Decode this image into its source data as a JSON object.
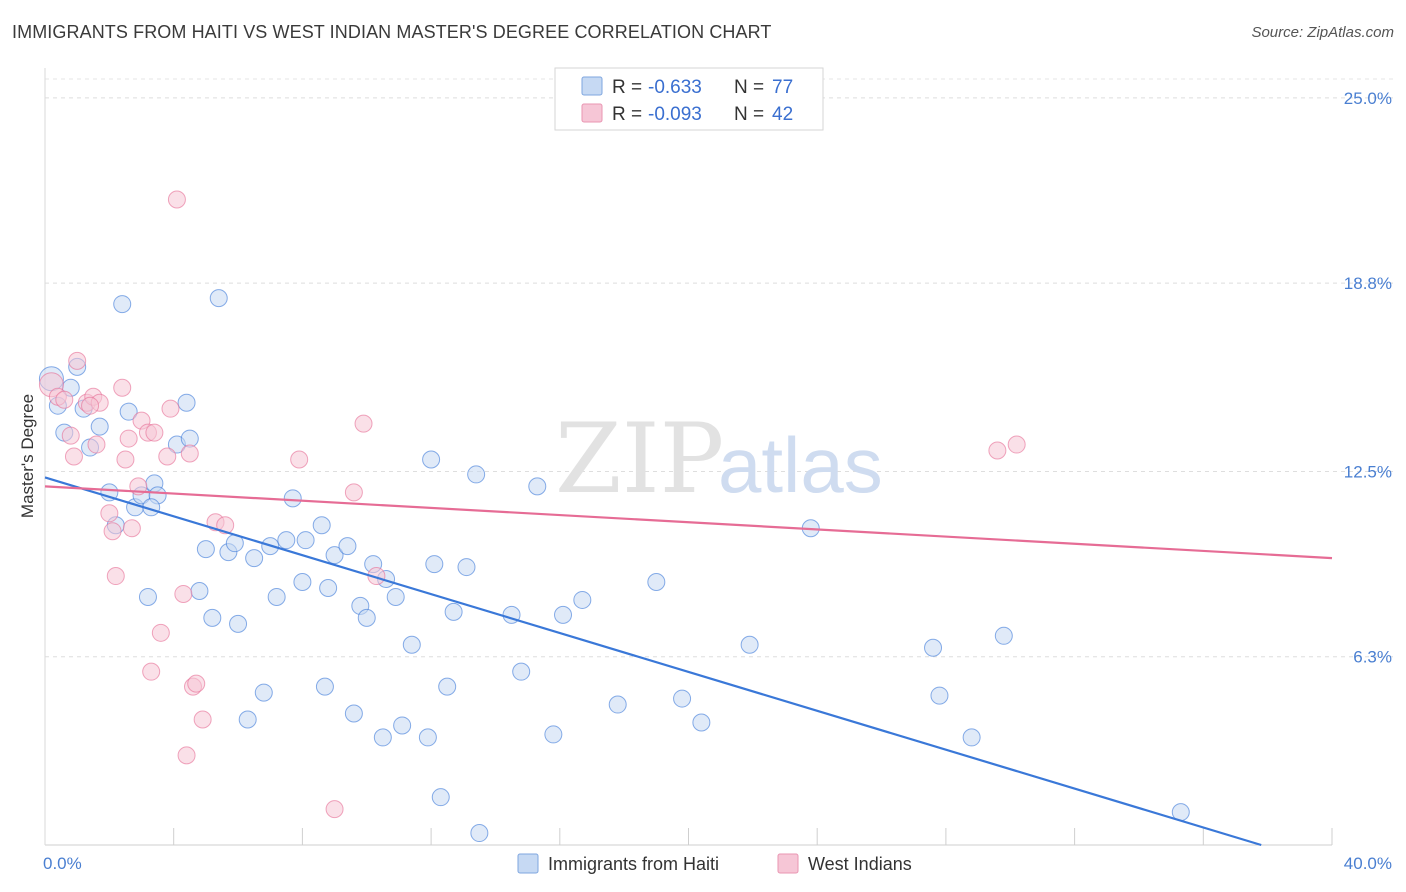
{
  "title": "IMMIGRANTS FROM HAITI VS WEST INDIAN MASTER'S DEGREE CORRELATION CHART",
  "source": "Source: ZipAtlas.com",
  "watermark": {
    "zip": "ZIP",
    "atlas": "atlas"
  },
  "colors": {
    "blue": "#3a78d8",
    "blue_fill": "#c6d9f3",
    "pink": "#e66c95",
    "pink_fill": "#f6c6d6",
    "tick": "#4a7fd1"
  },
  "legend": {
    "r_label": "R =",
    "n_label": "N =",
    "rows": [
      {
        "r": "-0.633",
        "n": "77",
        "color": "blue"
      },
      {
        "r": "-0.093",
        "n": "42",
        "color": "pink"
      }
    ]
  },
  "chart_data": {
    "type": "scatter",
    "title": "IMMIGRANTS FROM HAITI VS WEST INDIAN MASTER'S DEGREE CORRELATION CHART",
    "xlabel": "",
    "ylabel": "Master's Degree",
    "xlim": [
      0,
      40
    ],
    "ylim": [
      0,
      26.0
    ],
    "x_tick_labels": [
      "0.0%",
      "40.0%"
    ],
    "y_ticks": [
      6.3,
      12.5,
      18.8,
      25.0
    ],
    "y_tick_labels": [
      "6.3%",
      "12.5%",
      "18.8%",
      "25.0%"
    ],
    "grid": true,
    "legend_position": "top-center",
    "series": [
      {
        "name": "Immigrants from Haiti",
        "color": "blue",
        "trend": {
          "x": [
            0,
            37.8
          ],
          "y": [
            12.3,
            0.0
          ]
        },
        "points": [
          [
            0.2,
            15.6
          ],
          [
            0.4,
            14.7
          ],
          [
            0.8,
            15.3
          ],
          [
            1.0,
            16.0
          ],
          [
            1.2,
            14.6
          ],
          [
            0.6,
            13.8
          ],
          [
            1.4,
            13.3
          ],
          [
            1.7,
            14.0
          ],
          [
            2.6,
            14.5
          ],
          [
            2.0,
            11.8
          ],
          [
            2.2,
            10.7
          ],
          [
            2.8,
            11.3
          ],
          [
            3.0,
            11.7
          ],
          [
            3.4,
            12.1
          ],
          [
            3.5,
            11.7
          ],
          [
            2.4,
            18.1
          ],
          [
            5.4,
            18.3
          ],
          [
            4.1,
            13.4
          ],
          [
            4.4,
            14.8
          ],
          [
            4.5,
            13.6
          ],
          [
            3.3,
            11.3
          ],
          [
            4.8,
            8.5
          ],
          [
            5.0,
            9.9
          ],
          [
            5.2,
            7.6
          ],
          [
            5.7,
            9.8
          ],
          [
            5.9,
            10.1
          ],
          [
            6.0,
            7.4
          ],
          [
            6.5,
            9.6
          ],
          [
            6.8,
            5.1
          ],
          [
            7.0,
            10.0
          ],
          [
            7.2,
            8.3
          ],
          [
            7.5,
            10.2
          ],
          [
            7.7,
            11.6
          ],
          [
            8.0,
            8.8
          ],
          [
            8.1,
            10.2
          ],
          [
            8.6,
            10.7
          ],
          [
            8.7,
            5.3
          ],
          [
            8.8,
            8.6
          ],
          [
            9.0,
            9.7
          ],
          [
            9.4,
            10.0
          ],
          [
            9.6,
            4.4
          ],
          [
            9.8,
            8.0
          ],
          [
            10.0,
            7.6
          ],
          [
            10.2,
            9.4
          ],
          [
            10.5,
            3.6
          ],
          [
            10.6,
            8.9
          ],
          [
            10.9,
            8.3
          ],
          [
            11.1,
            4.0
          ],
          [
            11.4,
            6.7
          ],
          [
            11.9,
            3.6
          ],
          [
            12.0,
            12.9
          ],
          [
            12.1,
            9.4
          ],
          [
            12.3,
            1.6
          ],
          [
            12.5,
            5.3
          ],
          [
            12.7,
            7.8
          ],
          [
            13.1,
            9.3
          ],
          [
            13.4,
            12.4
          ],
          [
            13.5,
            0.4
          ],
          [
            14.5,
            7.7
          ],
          [
            14.8,
            5.8
          ],
          [
            15.3,
            12.0
          ],
          [
            15.8,
            3.7
          ],
          [
            16.1,
            7.7
          ],
          [
            16.7,
            8.2
          ],
          [
            17.8,
            4.7
          ],
          [
            19.0,
            8.8
          ],
          [
            19.8,
            4.9
          ],
          [
            20.4,
            4.1
          ],
          [
            21.9,
            6.7
          ],
          [
            23.8,
            10.6
          ],
          [
            27.6,
            6.6
          ],
          [
            27.8,
            5.0
          ],
          [
            28.8,
            3.6
          ],
          [
            29.8,
            7.0
          ],
          [
            35.3,
            1.1
          ],
          [
            3.2,
            8.3
          ],
          [
            6.3,
            4.2
          ]
        ]
      },
      {
        "name": "West Indians",
        "color": "pink",
        "trend": {
          "x": [
            0,
            40
          ],
          "y": [
            12.0,
            9.6
          ]
        },
        "points": [
          [
            0.2,
            15.4
          ],
          [
            0.4,
            15.0
          ],
          [
            0.6,
            14.9
          ],
          [
            0.8,
            13.7
          ],
          [
            0.9,
            13.0
          ],
          [
            1.0,
            16.2
          ],
          [
            1.3,
            14.8
          ],
          [
            1.5,
            15.0
          ],
          [
            1.6,
            13.4
          ],
          [
            1.7,
            14.8
          ],
          [
            2.0,
            11.1
          ],
          [
            2.1,
            10.5
          ],
          [
            2.2,
            9.0
          ],
          [
            2.4,
            15.3
          ],
          [
            2.5,
            12.9
          ],
          [
            2.6,
            13.6
          ],
          [
            2.7,
            10.6
          ],
          [
            2.9,
            12.0
          ],
          [
            3.0,
            14.2
          ],
          [
            3.2,
            13.8
          ],
          [
            3.3,
            5.8
          ],
          [
            3.6,
            7.1
          ],
          [
            3.8,
            13.0
          ],
          [
            3.9,
            14.6
          ],
          [
            4.1,
            21.6
          ],
          [
            4.3,
            8.4
          ],
          [
            4.5,
            13.1
          ],
          [
            4.6,
            5.3
          ],
          [
            4.7,
            5.4
          ],
          [
            4.9,
            4.2
          ],
          [
            5.3,
            10.8
          ],
          [
            5.6,
            10.7
          ],
          [
            4.4,
            3.0
          ],
          [
            7.9,
            12.9
          ],
          [
            9.0,
            1.2
          ],
          [
            9.6,
            11.8
          ],
          [
            9.9,
            14.1
          ],
          [
            10.3,
            9.0
          ],
          [
            29.6,
            13.2
          ],
          [
            30.2,
            13.4
          ],
          [
            1.4,
            14.7
          ],
          [
            3.4,
            13.8
          ]
        ]
      }
    ]
  }
}
